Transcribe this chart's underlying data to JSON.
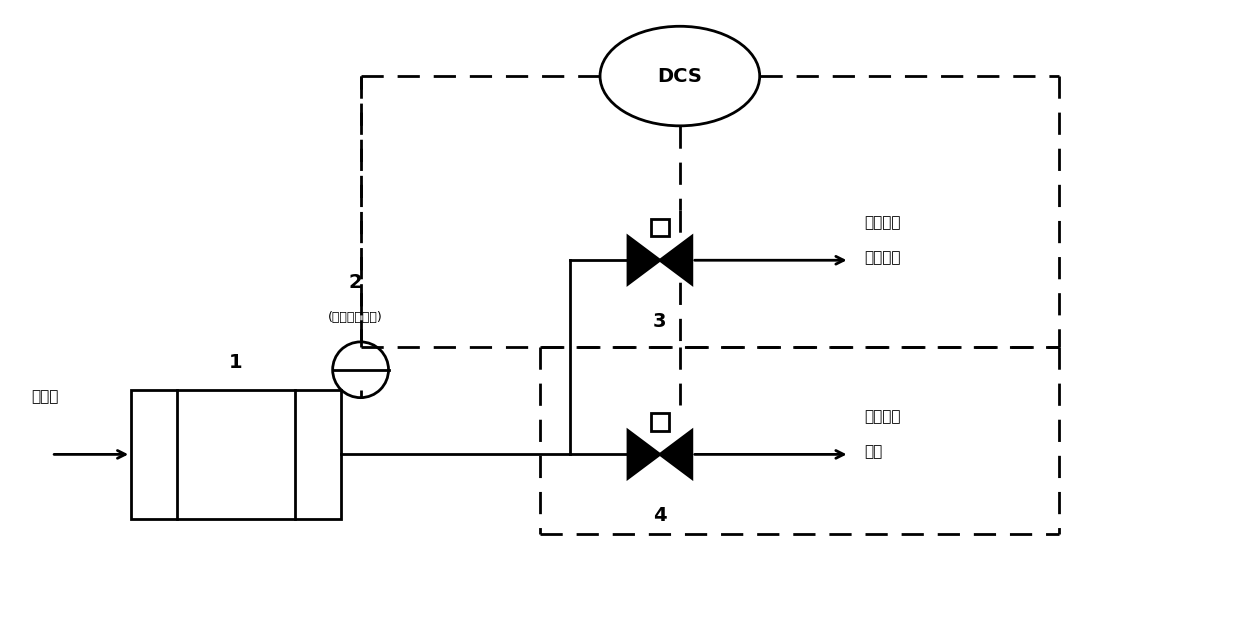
{
  "fig_width": 12.39,
  "fig_height": 6.34,
  "bg_color": "#ffffff",
  "line_color": "#000000",
  "dcs_label": "DCS",
  "label1": "1",
  "label2": "2",
  "label2_sub": "(无压力差状态)",
  "label3": "3",
  "label4": "4",
  "text_left": "裂解气",
  "text_right_top1": "裂解气去",
  "text_right_top2": "急冷水塔",
  "text_right_bot1": "热焦气去",
  "text_right_bot2": "炉膛"
}
